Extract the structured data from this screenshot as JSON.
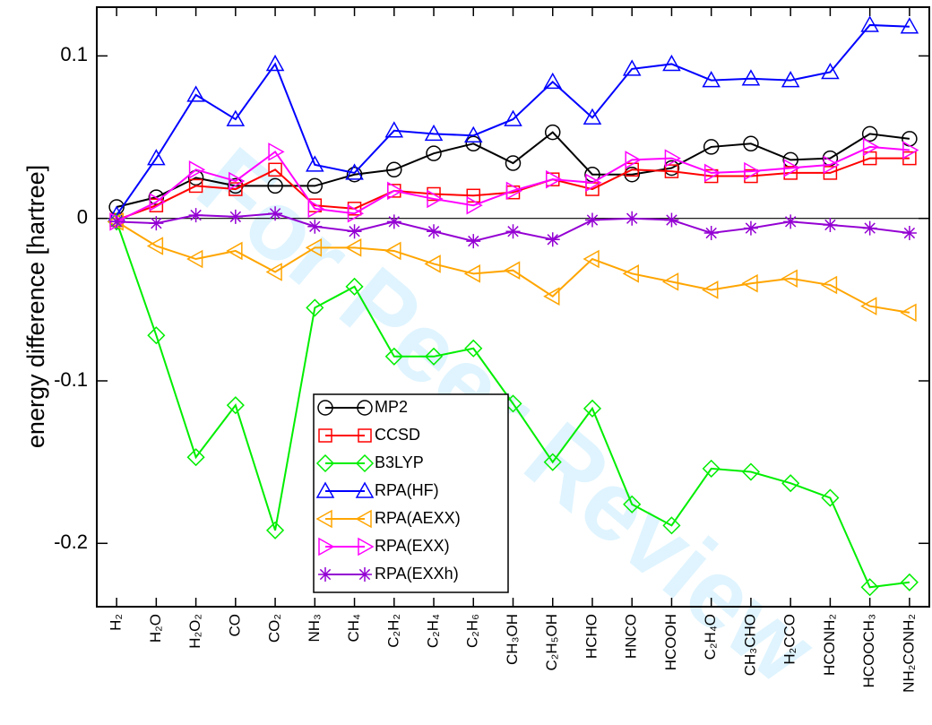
{
  "chart_data": {
    "type": "line",
    "ylabel": "energy difference [hartree]",
    "watermark": "For Peer Review",
    "categories": [
      "H₂",
      "H₂O",
      "H₂O₂",
      "CO",
      "CO₂",
      "NH₃",
      "CH₄",
      "C₂H₂",
      "C₂H₄",
      "C₂H₆",
      "CH₃OH",
      "C₂H₅OH",
      "HCHO",
      "HNCO",
      "HCOOH",
      "C₂H₄O",
      "CH₃CHO",
      "H₂CCO",
      "HCONH₂",
      "HCOOCH₃",
      "NH₂CONH₂"
    ],
    "ylim": [
      -0.239,
      0.13
    ],
    "yticks": [
      -0.2,
      -0.1,
      0,
      0.1
    ],
    "zero_line": true,
    "series": [
      {
        "name": "MP2",
        "color": "#000000",
        "marker": "circle",
        "values": [
          0.007,
          0.013,
          0.025,
          0.02,
          0.02,
          0.02,
          0.027,
          0.03,
          0.04,
          0.046,
          0.034,
          0.053,
          0.027,
          0.027,
          0.031,
          0.044,
          0.046,
          0.036,
          0.037,
          0.052,
          0.049
        ]
      },
      {
        "name": "CCSD",
        "color": "#ff0000",
        "marker": "square",
        "values": [
          -0.001,
          0.008,
          0.02,
          0.018,
          0.03,
          0.008,
          0.006,
          0.017,
          0.015,
          0.014,
          0.016,
          0.024,
          0.018,
          0.03,
          0.029,
          0.026,
          0.026,
          0.028,
          0.028,
          0.037,
          0.037
        ]
      },
      {
        "name": "B3LYP",
        "color": "#00ee00",
        "marker": "diamond",
        "values": [
          -0.002,
          -0.072,
          -0.147,
          -0.115,
          -0.192,
          -0.055,
          -0.042,
          -0.085,
          -0.085,
          -0.08,
          -0.114,
          -0.15,
          -0.117,
          -0.176,
          -0.189,
          -0.154,
          -0.156,
          -0.163,
          -0.172,
          -0.227,
          -0.224
        ]
      },
      {
        "name": "RPA(HF)",
        "color": "#0000ff",
        "marker": "triangle-up",
        "values": [
          0.002,
          0.037,
          0.076,
          0.061,
          0.095,
          0.033,
          0.028,
          0.054,
          0.052,
          0.051,
          0.061,
          0.084,
          0.062,
          0.092,
          0.095,
          0.085,
          0.086,
          0.085,
          0.09,
          0.119,
          0.118
        ]
      },
      {
        "name": "RPA(AEXX)",
        "color": "#ffa500",
        "marker": "triangle-left",
        "values": [
          -0.002,
          -0.017,
          -0.025,
          -0.02,
          -0.033,
          -0.018,
          -0.018,
          -0.02,
          -0.028,
          -0.034,
          -0.032,
          -0.048,
          -0.025,
          -0.034,
          -0.039,
          -0.044,
          -0.04,
          -0.037,
          -0.041,
          -0.054,
          -0.058
        ]
      },
      {
        "name": "RPA(EXX)",
        "color": "#ff00ff",
        "marker": "triangle-right",
        "values": [
          -0.002,
          0.01,
          0.03,
          0.023,
          0.041,
          0.006,
          0.003,
          0.017,
          0.012,
          0.008,
          0.017,
          0.024,
          0.022,
          0.036,
          0.037,
          0.028,
          0.029,
          0.031,
          0.033,
          0.044,
          0.042
        ]
      },
      {
        "name": "RPA(EXXh)",
        "color": "#9400d3",
        "marker": "star",
        "values": [
          -0.002,
          -0.003,
          0.002,
          0.001,
          0.003,
          -0.005,
          -0.008,
          -0.002,
          -0.008,
          -0.014,
          -0.008,
          -0.013,
          -0.001,
          0.0,
          -0.001,
          -0.009,
          -0.006,
          -0.002,
          -0.004,
          -0.006,
          -0.009
        ]
      }
    ]
  }
}
